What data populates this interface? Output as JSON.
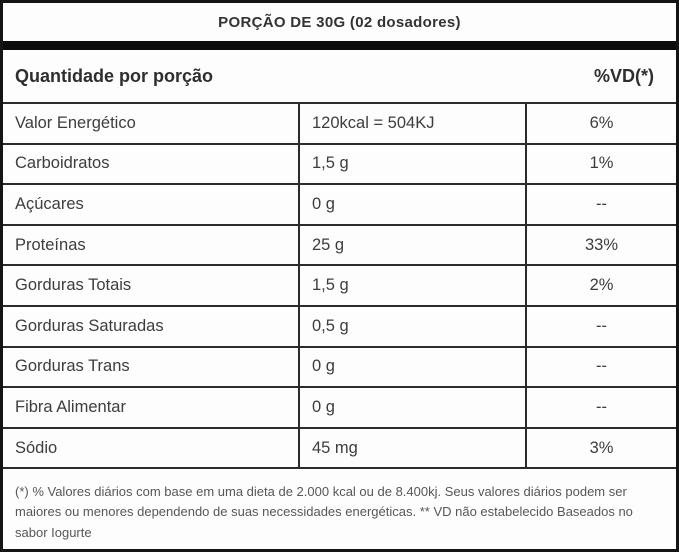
{
  "title": "PORÇÃO DE 30G (02 dosadores)",
  "header": {
    "quantity_label": "Quantidade por porção",
    "dv_label": "%VD(*)"
  },
  "table": {
    "columns": [
      "nutrient",
      "amount_per_serving",
      "percent_daily_value"
    ],
    "rows": [
      {
        "label": "Valor Energético",
        "amount": "120kcal = 504KJ",
        "dv": "6%"
      },
      {
        "label": "Carboidratos",
        "amount": "1,5 g",
        "dv": "1%"
      },
      {
        "label": "Açúcares",
        "amount": "0 g",
        "dv": "--"
      },
      {
        "label": "Proteínas",
        "amount": "25 g",
        "dv": "33%"
      },
      {
        "label": "Gorduras Totais",
        "amount": "1,5 g",
        "dv": "2%"
      },
      {
        "label": "Gorduras Saturadas",
        "amount": "0,5 g",
        "dv": "--"
      },
      {
        "label": "Gorduras Trans",
        "amount": "0 g",
        "dv": "--"
      },
      {
        "label": "Fibra Alimentar",
        "amount": "0 g",
        "dv": "--"
      },
      {
        "label": "Sódio",
        "amount": "45 mg",
        "dv": "3%"
      }
    ]
  },
  "footnote": "(*) % Valores diários com base em uma dieta de 2.000 kcal ou de 8.400kj. Seus valores diários podem ser maiores ou menores dependendo de suas necessidades energéticas. ** VD não estabelecido Baseados no sabor Iogurte",
  "colors": {
    "border": "#2b2b2b",
    "thick_bar": "#0c0c0c",
    "text": "#3d3d3d",
    "footnote_text": "#575757",
    "background": "#fdfdfd"
  }
}
